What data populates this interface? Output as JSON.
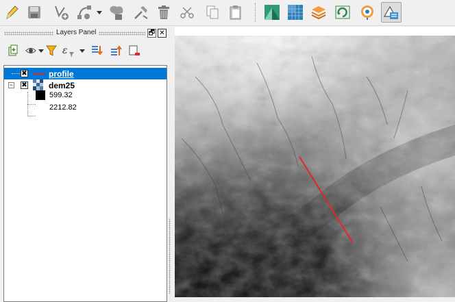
{
  "toolbar": {
    "buttons": [
      {
        "name": "toggle-editing-icon"
      },
      {
        "name": "save-layer-edits-icon"
      },
      {
        "name": "add-point-feature-icon"
      },
      {
        "name": "vertex-tool-icon"
      },
      {
        "name": "merge-features-icon"
      },
      {
        "name": "modify-attributes-icon"
      },
      {
        "name": "delete-selected-icon"
      },
      {
        "name": "cut-features-icon"
      },
      {
        "name": "copy-features-icon"
      },
      {
        "name": "paste-features-icon"
      },
      {
        "name": "terrain-profile-icon"
      },
      {
        "name": "raster-grid-icon"
      },
      {
        "name": "layer-stack-icon"
      },
      {
        "name": "refresh-map-icon"
      },
      {
        "name": "location-pin-icon"
      },
      {
        "name": "profile-tool-icon"
      }
    ]
  },
  "layers_panel": {
    "title": "Layers Panel",
    "float_label": "🗗",
    "close_label": "✕",
    "tools": [
      "add-group-icon",
      "visibility-eye-icon",
      "filter-legend-icon",
      "filter-expression-icon",
      "expand-all-icon",
      "collapse-all-icon",
      "remove-layer-icon"
    ]
  },
  "layers": {
    "profile": {
      "name": "profile",
      "checked": "✖",
      "line_color": "#e32626"
    },
    "dem": {
      "name": "dem25",
      "checked": "✖",
      "expander": "−",
      "min_label": "599.32",
      "max_label": "2212.82"
    }
  },
  "map": {
    "profile_line_color": "#e32626"
  }
}
